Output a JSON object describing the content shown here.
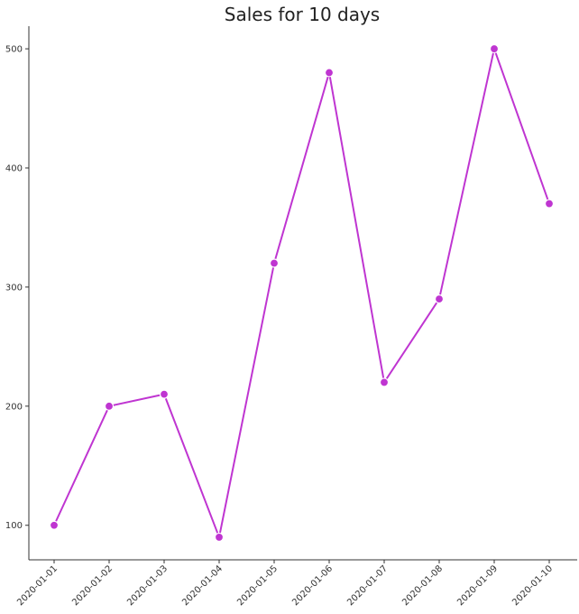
{
  "chart_data": {
    "type": "line",
    "title": "Sales for 10 days",
    "xlabel": "",
    "ylabel": "",
    "x": [
      "2020-01-01",
      "2020-01-02",
      "2020-01-03",
      "2020-01-04",
      "2020-01-05",
      "2020-01-06",
      "2020-01-07",
      "2020-01-08",
      "2020-01-09",
      "2020-01-10"
    ],
    "series": [
      {
        "values": [
          100,
          200,
          210,
          90,
          320,
          480,
          220,
          290,
          500,
          370
        ],
        "color": "#bf35d1"
      }
    ],
    "yticks": [
      100,
      200,
      300,
      400,
      500
    ],
    "ylim": [
      71,
      519
    ],
    "grid": false,
    "legend": "none"
  }
}
